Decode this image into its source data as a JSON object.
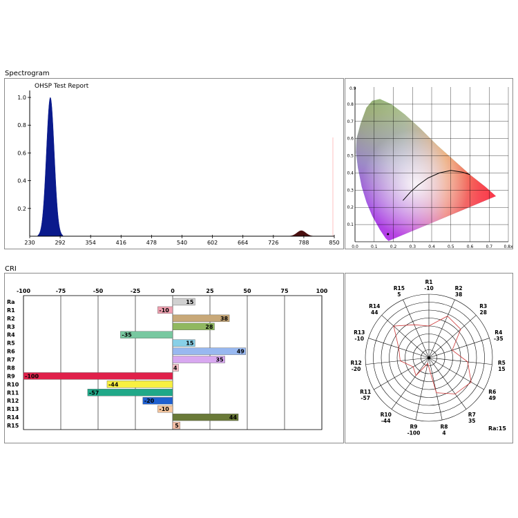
{
  "spectrogram": {
    "section_label": "Spectrogram",
    "title": "OHSP Test Report",
    "chart_data": {
      "type": "area",
      "x_ticks": [
        "230",
        "292",
        "354",
        "416",
        "478",
        "540",
        "602",
        "664",
        "726",
        "788",
        "850"
      ],
      "y_ticks": [
        "1.0",
        "0.8",
        "0.6",
        "0.4",
        "0.2"
      ],
      "xlim": [
        230,
        850
      ],
      "ylim": [
        0,
        1.05
      ],
      "peaks": [
        {
          "center": 272,
          "height": 1.0,
          "width": 8,
          "color": "#0a1a8c"
        },
        {
          "center": 783,
          "height": 0.04,
          "width": 9,
          "color": "#4a0f0f"
        }
      ]
    }
  },
  "cie": {
    "x_ticks": [
      "0.0",
      "0.1",
      "0.2",
      "0.3",
      "0.4",
      "0.5",
      "0.6",
      "0.7",
      "0.8x"
    ],
    "y_ticks": [
      "0.1",
      "0.2",
      "0.3",
      "0.4",
      "0.5",
      "0.6",
      "0.7",
      "0.8"
    ],
    "y_top_label": "0.9",
    "point": [
      0.172,
      0.044
    ]
  },
  "cri": {
    "section_label": "CRI",
    "chart_data": {
      "type": "bar",
      "categories": [
        "Ra",
        "R1",
        "R2",
        "R3",
        "R4",
        "R5",
        "R6",
        "R7",
        "R8",
        "R9",
        "R10",
        "R11",
        "R12",
        "R13",
        "R14",
        "R15"
      ],
      "values": [
        15,
        -10,
        38,
        28,
        -35,
        15,
        49,
        35,
        4,
        -100,
        -44,
        -57,
        -20,
        -10,
        44,
        5
      ],
      "labels": [
        "15",
        "-10",
        "38",
        "28",
        "-35",
        "15",
        "49",
        "35",
        "4",
        "-100",
        "-44",
        "-57",
        "-20",
        "-10",
        "44",
        "5"
      ],
      "colors": [
        "#d0d0d0",
        "#f0a0b0",
        "#c8a878",
        "#90b860",
        "#78c8a0",
        "#88d0e8",
        "#98b8f0",
        "#d8a8f0",
        "#f8c0c8",
        "#e0204a",
        "#f8f040",
        "#20a888",
        "#2060d0",
        "#f8c8a0",
        "#6a7a38",
        "#f8c0a8"
      ],
      "x_ticks": [
        "-100",
        "-75",
        "-50",
        "-25",
        "0",
        "25",
        "50",
        "75",
        "100"
      ],
      "xlim": [
        -100,
        100
      ]
    }
  },
  "polar": {
    "items": [
      {
        "name": "R1",
        "value": "-10",
        "v": -10
      },
      {
        "name": "R2",
        "value": "38",
        "v": 38
      },
      {
        "name": "R3",
        "value": "28",
        "v": 28
      },
      {
        "name": "R4",
        "value": "-35",
        "v": -35
      },
      {
        "name": "R5",
        "value": "15",
        "v": 15
      },
      {
        "name": "R6",
        "value": "49",
        "v": 49
      },
      {
        "name": "R7",
        "value": "35",
        "v": 35
      },
      {
        "name": "R8",
        "value": "4",
        "v": 4
      },
      {
        "name": "R9",
        "value": "-100",
        "v": -100
      },
      {
        "name": "R10",
        "value": "-44",
        "v": -44
      },
      {
        "name": "R11",
        "value": "-57",
        "v": -57
      },
      {
        "name": "R12",
        "value": "-20",
        "v": -20
      },
      {
        "name": "R13",
        "value": "-10",
        "v": -10
      },
      {
        "name": "R14",
        "value": "44",
        "v": 44
      },
      {
        "name": "R15",
        "value": "5",
        "v": 5
      }
    ],
    "ra_label": "Ra:15"
  }
}
